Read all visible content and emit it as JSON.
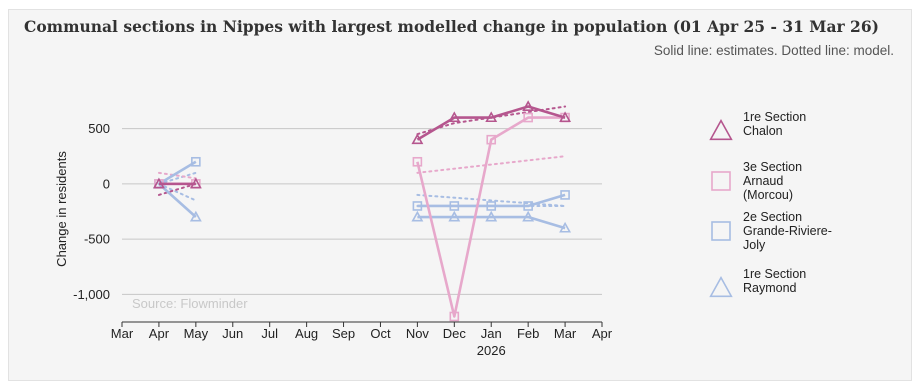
{
  "chart_data": {
    "type": "line",
    "title": "Communal sections in Nippes with largest modelled change in population (01 Apr 25 - 31 Mar 26)",
    "subtitle": "Solid line: estimates. Dotted line: model.",
    "xlabel": "",
    "ylabel": "Change in residents",
    "source": "Source: Flowminder",
    "x_ticks": [
      "Mar",
      "Apr",
      "May",
      "Jun",
      "Jul",
      "Aug",
      "Sep",
      "Oct",
      "Nov",
      "Dec",
      "Jan",
      "Feb",
      "Mar",
      "Apr"
    ],
    "x_year_label": "2026",
    "x_year_under_tick": 10,
    "xlim": [
      0,
      13
    ],
    "y_ticks": [
      500,
      0,
      -500,
      -1000
    ],
    "y_tick_labels": [
      "500",
      "0",
      "-500",
      "-1,000"
    ],
    "ylim": [
      -1250,
      750
    ],
    "grid": "horizontal",
    "legend_position": "right",
    "series": [
      {
        "name": "1re Section Chalon",
        "color": "#b5568e",
        "marker": "triangle",
        "estimates": [
          [
            1,
            0
          ],
          [
            2,
            0
          ],
          null,
          [
            8,
            400
          ],
          [
            9,
            600
          ],
          [
            10,
            600
          ],
          [
            11,
            700
          ],
          [
            12,
            600
          ]
        ],
        "model": [
          [
            1,
            -100
          ],
          [
            2,
            0
          ],
          null,
          [
            8,
            450
          ],
          [
            9,
            550
          ],
          [
            10,
            600
          ],
          [
            11,
            650
          ],
          [
            12,
            700
          ]
        ]
      },
      {
        "name": "3e Section Arnaud (Morcou)",
        "color": "#e7a8cb",
        "marker": "square",
        "estimates": [
          [
            1,
            0
          ],
          [
            2,
            0
          ],
          null,
          [
            8,
            200
          ],
          [
            9,
            -1200
          ],
          [
            10,
            400
          ],
          [
            11,
            600
          ],
          [
            12,
            600
          ]
        ],
        "model": [
          [
            1,
            100
          ],
          [
            2,
            50
          ],
          null,
          [
            8,
            100
          ],
          [
            12,
            250
          ]
        ]
      },
      {
        "name": "2e Section Grande-Riviere-Joly",
        "color": "#a7bde3",
        "marker": "square",
        "estimates": [
          [
            1,
            0
          ],
          [
            2,
            200
          ],
          null,
          [
            8,
            -200
          ],
          [
            9,
            -200
          ],
          [
            10,
            -200
          ],
          [
            11,
            -200
          ],
          [
            12,
            -100
          ]
        ],
        "model": [
          [
            1,
            0
          ],
          [
            2,
            100
          ],
          null,
          [
            8,
            -200
          ],
          [
            12,
            -200
          ]
        ]
      },
      {
        "name": "1re Section Raymond",
        "color": "#a7bde3",
        "marker": "triangle",
        "estimates": [
          [
            1,
            0
          ],
          [
            2,
            -300
          ],
          null,
          [
            8,
            -300
          ],
          [
            9,
            -300
          ],
          [
            10,
            -300
          ],
          [
            11,
            -300
          ],
          [
            12,
            -400
          ]
        ],
        "model": [
          [
            1,
            0
          ],
          [
            2,
            -150
          ],
          null,
          [
            8,
            -100
          ],
          [
            12,
            -200
          ]
        ]
      }
    ]
  }
}
